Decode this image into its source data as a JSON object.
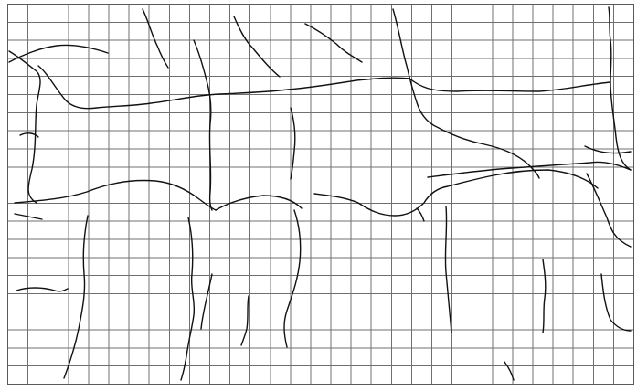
{
  "figure": {
    "description_kind": "grid-overlay-crack-map",
    "colors": {
      "background": "#ffffff",
      "grid": "#6f6f6f",
      "crack": "#111111",
      "frame": "#5a5a5a"
    },
    "grid": {
      "columns": 31,
      "rows": 21
    },
    "crack_count": 30
  }
}
